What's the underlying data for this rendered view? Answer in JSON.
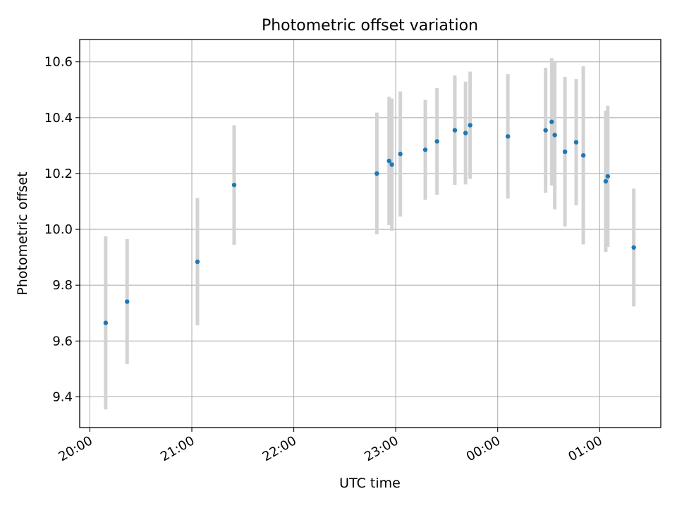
{
  "chart_data": {
    "type": "scatter",
    "title": "Photometric offset variation",
    "xlabel": "UTC time",
    "ylabel": "Photometric offset",
    "x_unit": "hours UTC (24.0 = midnight on the following day)",
    "xlim": [
      19.9,
      25.6
    ],
    "ylim": [
      9.29,
      10.68
    ],
    "grid": true,
    "legend": "none",
    "x_ticks": [
      {
        "value": 20,
        "label": "20:00"
      },
      {
        "value": 21,
        "label": "21:00"
      },
      {
        "value": 22,
        "label": "22:00"
      },
      {
        "value": 23,
        "label": "23:00"
      },
      {
        "value": 24,
        "label": "00:00"
      },
      {
        "value": 25,
        "label": "01:00"
      }
    ],
    "y_ticks": [
      {
        "value": 9.4,
        "label": "9.4"
      },
      {
        "value": 9.6,
        "label": "9.6"
      },
      {
        "value": 9.8,
        "label": "9.8"
      },
      {
        "value": 10.0,
        "label": "10.0"
      },
      {
        "value": 10.2,
        "label": "10.2"
      },
      {
        "value": 10.4,
        "label": "10.4"
      },
      {
        "value": 10.6,
        "label": "10.6"
      }
    ],
    "point_color": "#1f77b4",
    "errorbar_color": "#d3d3d3",
    "points": [
      {
        "x": 20.155,
        "y": 9.665,
        "err": 0.31
      },
      {
        "x": 20.365,
        "y": 9.741,
        "err": 0.224
      },
      {
        "x": 21.055,
        "y": 9.884,
        "err": 0.228
      },
      {
        "x": 21.415,
        "y": 10.159,
        "err": 0.214
      },
      {
        "x": 22.815,
        "y": 10.2,
        "err": 0.218
      },
      {
        "x": 22.935,
        "y": 10.245,
        "err": 0.23
      },
      {
        "x": 22.962,
        "y": 10.232,
        "err": 0.237
      },
      {
        "x": 23.045,
        "y": 10.27,
        "err": 0.224
      },
      {
        "x": 23.29,
        "y": 10.285,
        "err": 0.179
      },
      {
        "x": 23.405,
        "y": 10.315,
        "err": 0.191
      },
      {
        "x": 23.58,
        "y": 10.355,
        "err": 0.196
      },
      {
        "x": 23.685,
        "y": 10.345,
        "err": 0.184
      },
      {
        "x": 23.73,
        "y": 10.373,
        "err": 0.192
      },
      {
        "x": 24.1,
        "y": 10.333,
        "err": 0.223
      },
      {
        "x": 24.47,
        "y": 10.355,
        "err": 0.224
      },
      {
        "x": 24.53,
        "y": 10.385,
        "err": 0.228
      },
      {
        "x": 24.56,
        "y": 10.338,
        "err": 0.266
      },
      {
        "x": 24.66,
        "y": 10.278,
        "err": 0.268
      },
      {
        "x": 24.77,
        "y": 10.312,
        "err": 0.226
      },
      {
        "x": 24.84,
        "y": 10.265,
        "err": 0.319
      },
      {
        "x": 25.06,
        "y": 10.172,
        "err": 0.253
      },
      {
        "x": 25.08,
        "y": 10.19,
        "err": 0.253
      },
      {
        "x": 25.335,
        "y": 9.935,
        "err": 0.211
      }
    ]
  }
}
